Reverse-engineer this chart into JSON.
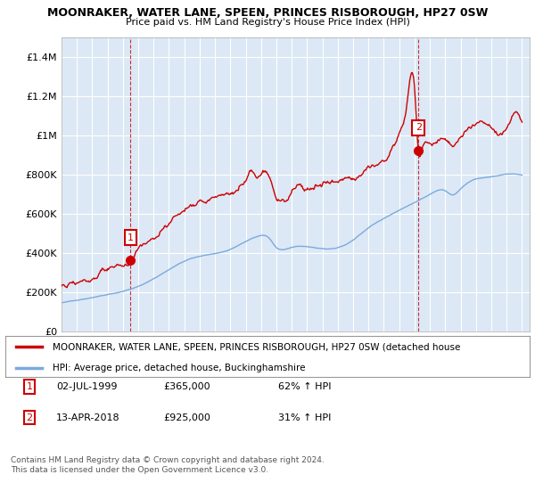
{
  "title": "MOONRAKER, WATER LANE, SPEEN, PRINCES RISBOROUGH, HP27 0SW",
  "subtitle": "Price paid vs. HM Land Registry's House Price Index (HPI)",
  "legend_line1": "MOONRAKER, WATER LANE, SPEEN, PRINCES RISBOROUGH, HP27 0SW (detached house",
  "legend_line2": "HPI: Average price, detached house, Buckinghamshire",
  "annotation1_label": "1",
  "annotation1_date": "02-JUL-1999",
  "annotation1_price": "£365,000",
  "annotation1_hpi": "62% ↑ HPI",
  "annotation2_label": "2",
  "annotation2_date": "13-APR-2018",
  "annotation2_price": "£925,000",
  "annotation2_hpi": "31% ↑ HPI",
  "footer": "Contains HM Land Registry data © Crown copyright and database right 2024.\nThis data is licensed under the Open Government Licence v3.0.",
  "price_color": "#cc0000",
  "hpi_color": "#7aaadd",
  "annotation_color": "#cc0000",
  "plot_bg_color": "#dce8f5",
  "background_color": "#ffffff",
  "ylim": [
    0,
    1500000
  ],
  "yticks": [
    0,
    200000,
    400000,
    600000,
    800000,
    1000000,
    1200000,
    1400000
  ],
  "ytick_labels": [
    "£0",
    "£200K",
    "£400K",
    "£600K",
    "£800K",
    "£1M",
    "£1.2M",
    "£1.4M"
  ],
  "purchase1_x": 1999.5,
  "purchase1_y": 365000,
  "purchase2_x": 2018.25,
  "purchase2_y": 925000,
  "xmin": 1995,
  "xmax": 2025.5
}
